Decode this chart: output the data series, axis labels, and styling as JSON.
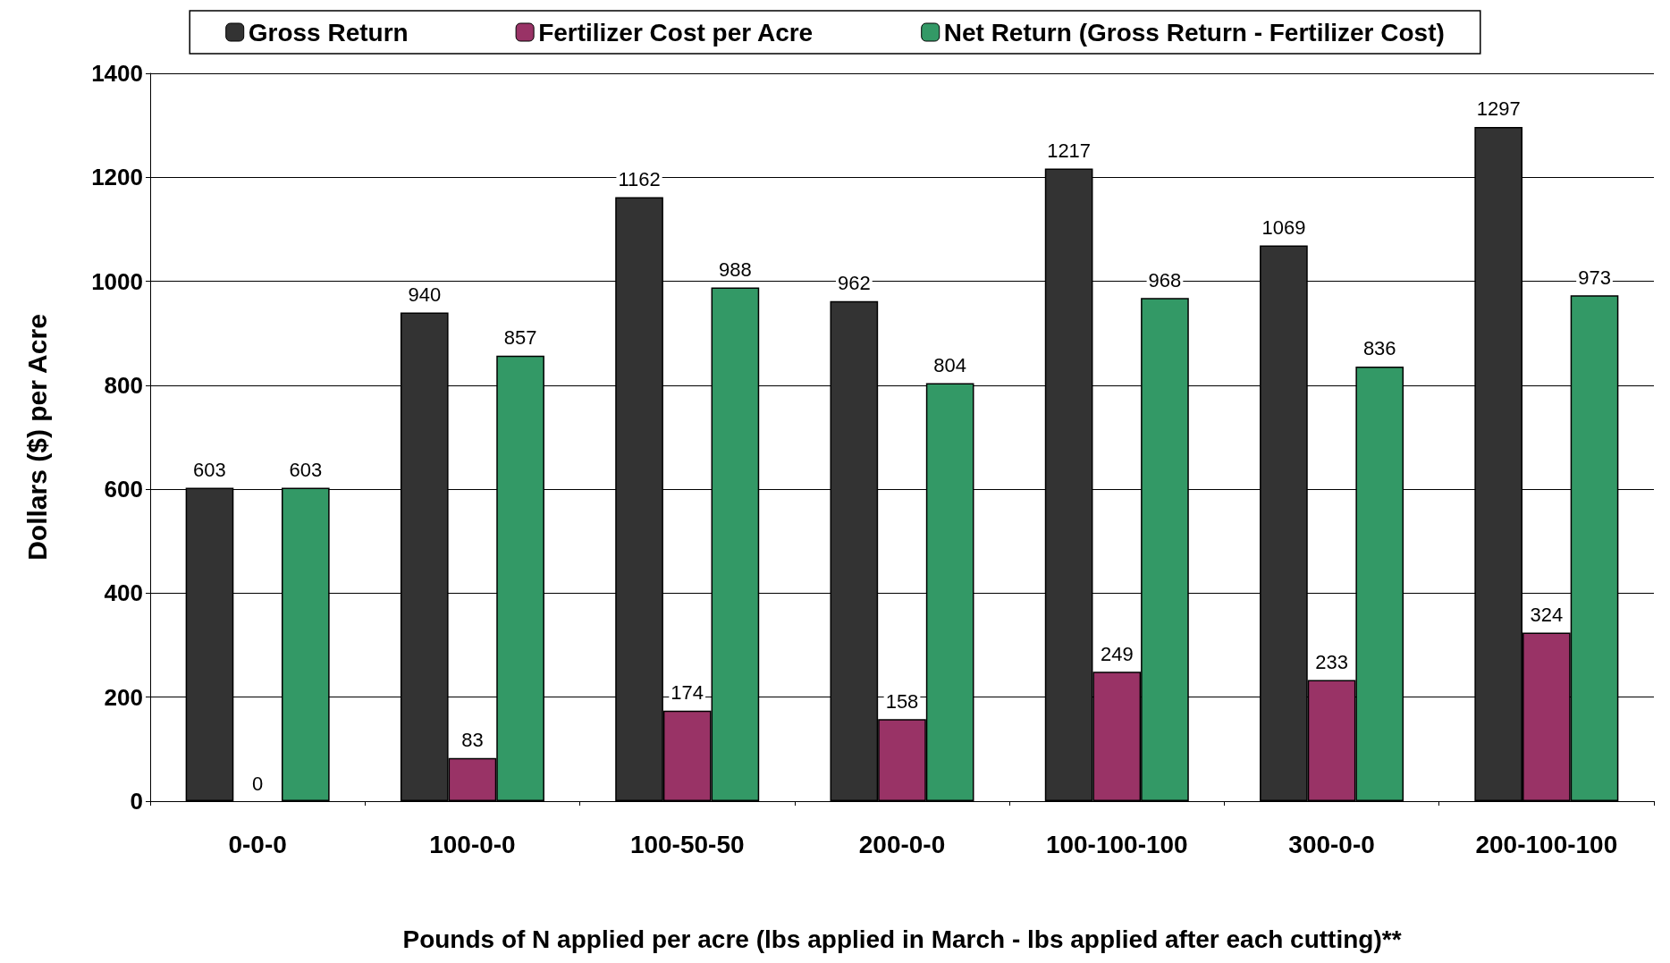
{
  "chart_data": {
    "type": "bar",
    "xlabel": "Pounds of N applied per acre (lbs applied in March - lbs applied after each cutting)**",
    "ylabel": "Dollars ($) per Acre",
    "categories": [
      "0-0-0",
      "100-0-0",
      "100-50-50",
      "200-0-0",
      "100-100-100",
      "300-0-0",
      "200-100-100"
    ],
    "series": [
      {
        "name": "Gross Return",
        "color": "#333333",
        "values": [
          603,
          940,
          1162,
          962,
          1217,
          1069,
          1297
        ]
      },
      {
        "name": "Fertilizer Cost per Acre",
        "color": "#993366",
        "values": [
          0,
          83,
          174,
          158,
          249,
          233,
          324
        ]
      },
      {
        "name": "Net Return (Gross Return - Fertilizer Cost)",
        "color": "#339966",
        "values": [
          603,
          857,
          988,
          804,
          968,
          836,
          973
        ]
      }
    ],
    "ylim": [
      0,
      1400
    ],
    "yticks": [
      0,
      200,
      400,
      600,
      800,
      1000,
      1200,
      1400
    ],
    "grid": "y",
    "legend": "top",
    "data_labels": true
  }
}
